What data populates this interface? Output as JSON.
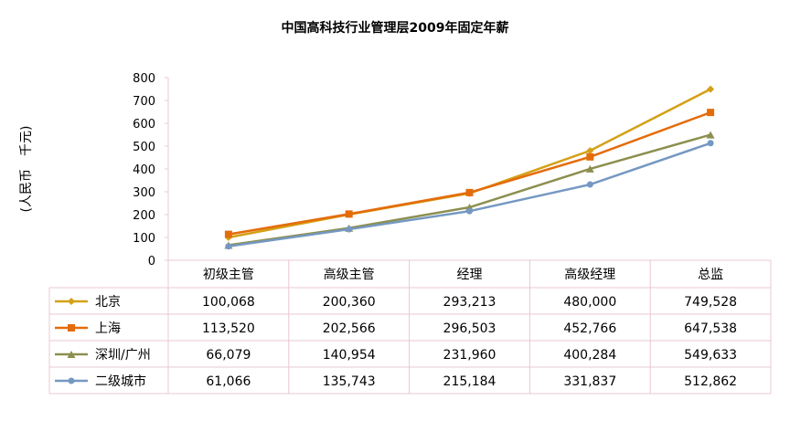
{
  "chart_data": {
    "type": "line",
    "title": "中国高科技行业管理层2009年固定年薪",
    "ylabel": "(人民币　千元)",
    "xlabel": "",
    "ylim": [
      0,
      800
    ],
    "yticks": [
      "0",
      "100",
      "200",
      "300",
      "400",
      "500",
      "600",
      "700",
      "800"
    ],
    "categories": [
      "初级主管",
      "高级主管",
      "经理",
      "高级经理",
      "总监"
    ],
    "series": [
      {
        "name": "北京",
        "color": "#D4A017",
        "marker": "diamond",
        "values": [
          100068,
          200360,
          293213,
          480000,
          749528
        ],
        "labels": [
          "100,068",
          "200,360",
          "293,213",
          "480,000",
          "749,528"
        ]
      },
      {
        "name": "上海",
        "color": "#E46C0A",
        "marker": "square",
        "values": [
          113520,
          202566,
          296503,
          452766,
          647538
        ],
        "labels": [
          "113,520",
          "202,566",
          "296,503",
          "452,766",
          "647,538"
        ]
      },
      {
        "name": "深圳/广州",
        "color": "#8C8F4F",
        "marker": "triangle",
        "values": [
          66079,
          140954,
          231960,
          400284,
          549633
        ],
        "labels": [
          "66,079",
          "140,954",
          "231,960",
          "400,284",
          "549,633"
        ]
      },
      {
        "name": "二级城市",
        "color": "#7598C2",
        "marker": "circle",
        "values": [
          61066,
          135743,
          215184,
          331837,
          512862
        ],
        "labels": [
          "61,066",
          "135,743",
          "215,184",
          "331,837",
          "512,862"
        ]
      }
    ],
    "grid": false,
    "legend": "data-table-left",
    "axis_color": "#E8C8D0"
  }
}
